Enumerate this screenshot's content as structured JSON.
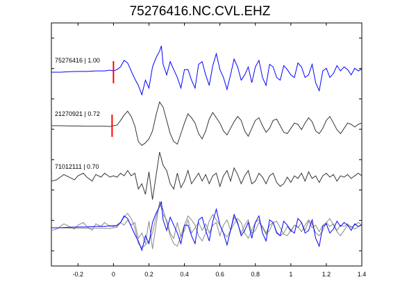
{
  "chart_data": {
    "type": "line",
    "title": "75276416.NC.CVL.EHZ",
    "xlabel": "",
    "ylabel": "",
    "xlim": [
      -0.35,
      1.4
    ],
    "x_ticks": [
      "-0.2",
      "0",
      "0.2",
      "0.4",
      "0.6",
      "0.8",
      "1",
      "1.2",
      "1.4"
    ],
    "x_tick_values": [
      -0.2,
      0,
      0.2,
      0.4,
      0.6,
      0.8,
      1.0,
      1.2,
      1.4
    ],
    "y_ticks_count": 8,
    "grid": false,
    "pick_time": 0.0,
    "series": [
      {
        "name": "75276416 | 1.00",
        "color": "#0000ff",
        "x": [
          -0.35,
          -0.3,
          -0.25,
          -0.2,
          -0.15,
          -0.1,
          -0.05,
          -0.02,
          0,
          0.02,
          0.04,
          0.06,
          0.08,
          0.1,
          0.12,
          0.14,
          0.16,
          0.18,
          0.2,
          0.22,
          0.24,
          0.26,
          0.27,
          0.28,
          0.3,
          0.32,
          0.34,
          0.36,
          0.38,
          0.4,
          0.42,
          0.44,
          0.46,
          0.48,
          0.5,
          0.52,
          0.54,
          0.56,
          0.58,
          0.6,
          0.62,
          0.64,
          0.66,
          0.68,
          0.7,
          0.72,
          0.74,
          0.76,
          0.78,
          0.8,
          0.82,
          0.84,
          0.86,
          0.88,
          0.9,
          0.92,
          0.94,
          0.96,
          0.98,
          1.0,
          1.02,
          1.04,
          1.06,
          1.08,
          1.1,
          1.12,
          1.14,
          1.16,
          1.18,
          1.2,
          1.22,
          1.24,
          1.26,
          1.28,
          1.3,
          1.32,
          1.34,
          1.36,
          1.38,
          1.4
        ],
        "y": [
          0,
          0,
          0.02,
          0.03,
          0.03,
          0.05,
          0.05,
          0.08,
          0.05,
          0.1,
          0.2,
          0.45,
          0.35,
          0.05,
          -0.25,
          -0.5,
          -0.85,
          -0.3,
          -0.6,
          0.2,
          0.55,
          0.8,
          1.0,
          0.3,
          -0.1,
          0.4,
          0.1,
          -0.2,
          -0.6,
          0.1,
          0.1,
          -0.3,
          -0.6,
          0.3,
          0.4,
          -0.1,
          -0.5,
          0.25,
          0.7,
          0.1,
          -0.2,
          -0.65,
          -0.1,
          0.5,
          0.2,
          -0.3,
          -0.1,
          0.2,
          -0.4,
          0.2,
          0.45,
          -0.2,
          -0.5,
          0.3,
          0.2,
          -0.2,
          -0.3,
          0.25,
          0.1,
          -0.1,
          -0.2,
          0.35,
          0.2,
          -0.2,
          -0.1,
          0.3,
          -0.4,
          -0.7,
          0.05,
          0.15,
          -0.2,
          -0.05,
          0.25,
          0.05,
          0.2,
          0.1,
          -0.1,
          0.15,
          0.05,
          0.12
        ]
      },
      {
        "name": "21270921 | 0.72",
        "color": "#333333",
        "x": [
          -0.35,
          -0.3,
          -0.25,
          -0.2,
          -0.15,
          -0.1,
          -0.05,
          -0.02,
          0,
          0.02,
          0.04,
          0.06,
          0.08,
          0.1,
          0.12,
          0.14,
          0.16,
          0.18,
          0.2,
          0.22,
          0.24,
          0.26,
          0.28,
          0.3,
          0.32,
          0.34,
          0.36,
          0.38,
          0.4,
          0.42,
          0.44,
          0.46,
          0.48,
          0.5,
          0.52,
          0.54,
          0.56,
          0.58,
          0.6,
          0.62,
          0.64,
          0.66,
          0.68,
          0.7,
          0.72,
          0.74,
          0.76,
          0.78,
          0.8,
          0.82,
          0.84,
          0.86,
          0.88,
          0.9,
          0.92,
          0.94,
          0.96,
          0.98,
          1.0,
          1.02,
          1.04,
          1.06,
          1.08,
          1.1,
          1.12,
          1.14,
          1.16,
          1.18,
          1.2,
          1.22,
          1.24,
          1.26,
          1.28,
          1.3,
          1.32,
          1.34,
          1.36,
          1.38,
          1.4
        ],
        "y": [
          0,
          0,
          -0.01,
          -0.01,
          -0.02,
          -0.02,
          -0.02,
          -0.03,
          0,
          0.02,
          0.2,
          0.4,
          0.55,
          0.35,
          0.0,
          -0.6,
          -0.75,
          -0.65,
          -0.5,
          -0.2,
          0.4,
          0.9,
          0.7,
          0.2,
          -0.3,
          -0.6,
          -0.7,
          -0.3,
          0.1,
          0.45,
          0.3,
          0.1,
          -0.3,
          -0.5,
          -0.2,
          0.25,
          0.5,
          0.3,
          0.1,
          -0.2,
          -0.35,
          -0.1,
          0.15,
          0.35,
          0.2,
          -0.2,
          -0.4,
          -0.1,
          0.2,
          0.3,
          0.0,
          -0.25,
          -0.1,
          0.2,
          0.25,
          0.0,
          -0.25,
          -0.3,
          -0.1,
          0.1,
          0.05,
          -0.15,
          0.1,
          0.3,
          0.15,
          -0.2,
          -0.3,
          -0.1,
          0.2,
          0.35,
          0.1,
          -0.15,
          -0.3,
          -0.1,
          0.1,
          0.05,
          -0.05,
          0.05,
          0.1
        ]
      },
      {
        "name": "71012111 | 0.70",
        "color": "#333333",
        "x": [
          -0.35,
          -0.32,
          -0.3,
          -0.28,
          -0.25,
          -0.22,
          -0.2,
          -0.17,
          -0.15,
          -0.12,
          -0.1,
          -0.07,
          -0.05,
          -0.02,
          0,
          0.02,
          0.04,
          0.06,
          0.08,
          0.1,
          0.12,
          0.14,
          0.16,
          0.18,
          0.2,
          0.22,
          0.24,
          0.26,
          0.28,
          0.3,
          0.32,
          0.34,
          0.36,
          0.38,
          0.4,
          0.42,
          0.44,
          0.46,
          0.48,
          0.5,
          0.52,
          0.54,
          0.56,
          0.58,
          0.6,
          0.62,
          0.64,
          0.66,
          0.68,
          0.7,
          0.72,
          0.74,
          0.76,
          0.78,
          0.8,
          0.82,
          0.84,
          0.86,
          0.88,
          0.9,
          0.92,
          0.94,
          0.96,
          0.98,
          1.0,
          1.02,
          1.04,
          1.06,
          1.08,
          1.1,
          1.12,
          1.14,
          1.16,
          1.18,
          1.2,
          1.22,
          1.24,
          1.26,
          1.28,
          1.3,
          1.32,
          1.34,
          1.36,
          1.38,
          1.4
        ],
        "y": [
          -0.1,
          -0.05,
          0.05,
          0.15,
          0.05,
          -0.05,
          0.1,
          0.2,
          0.05,
          -0.1,
          0.15,
          0.05,
          0.2,
          0.05,
          0.1,
          0.05,
          0.2,
          0.1,
          0.3,
          0.1,
          0.2,
          -0.4,
          -0.2,
          -0.6,
          0.25,
          -0.8,
          0.1,
          1.0,
          0.5,
          0.3,
          -0.2,
          -0.4,
          0.2,
          -0.35,
          -0.1,
          0.3,
          -0.2,
          0.0,
          0.2,
          -0.1,
          0.15,
          -0.2,
          0.1,
          0.2,
          -0.3,
          0.1,
          0.3,
          -0.1,
          0.4,
          0.15,
          -0.2,
          0.1,
          0.3,
          -0.2,
          -0.1,
          0.2,
          0.05,
          -0.2,
          0.1,
          0.2,
          -0.15,
          -0.3,
          -0.2,
          0.05,
          -0.15,
          0.1,
          0.0,
          0.2,
          -0.1,
          0.25,
          0.0,
          0.1,
          -0.15,
          0.1,
          0.2,
          0.05,
          0.15,
          -0.1,
          0.1,
          0.05,
          0.15,
          0.0,
          0.1,
          0.2,
          0.1
        ]
      }
    ]
  }
}
